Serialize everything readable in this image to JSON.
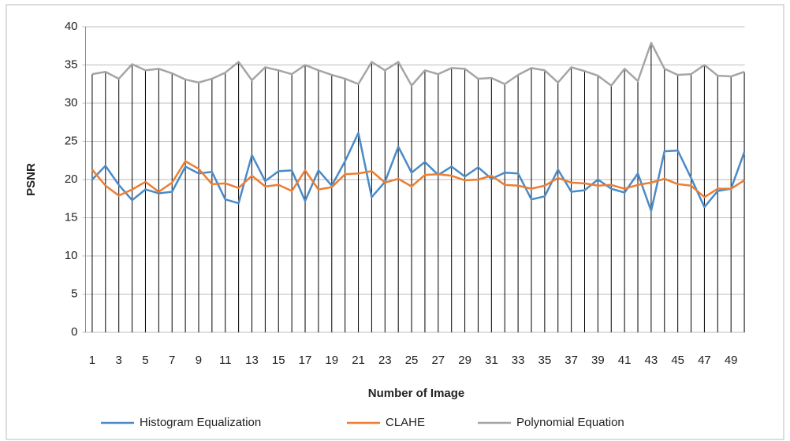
{
  "chart_data": {
    "type": "line",
    "y_label": "PSNR",
    "x_label": "Number of Image",
    "categories": [
      1,
      null,
      3,
      null,
      5,
      null,
      7,
      null,
      9,
      null,
      11,
      null,
      13,
      null,
      15,
      null,
      17,
      null,
      19,
      null,
      21,
      null,
      23,
      null,
      25,
      null,
      27,
      null,
      29,
      null,
      31,
      null,
      33,
      null,
      35,
      null,
      37,
      null,
      39,
      null,
      41,
      null,
      43,
      null,
      45,
      null,
      47,
      null,
      49,
      null
    ],
    "series": [
      {
        "name": "Histogram Equalization",
        "color": "#4a8bc8",
        "values": [
          20.0,
          21.8,
          19.3,
          17.3,
          18.7,
          18.2,
          18.4,
          21.7,
          20.8,
          21.0,
          17.4,
          16.9,
          23.2,
          19.8,
          21.1,
          21.2,
          17.2,
          21.2,
          19.2,
          22.4,
          26.1,
          17.7,
          19.7,
          24.3,
          20.9,
          22.3,
          20.6,
          21.7,
          20.4,
          21.6,
          20.1,
          20.9,
          20.8,
          17.4,
          17.8,
          21.3,
          18.4,
          18.6,
          20.0,
          18.8,
          18.3,
          20.8,
          15.9,
          23.7,
          23.8,
          20.2,
          16.4,
          18.5,
          18.8,
          23.6
        ]
      },
      {
        "name": "CLAHE",
        "color": "#ed7d31",
        "values": [
          21.3,
          19.2,
          17.9,
          18.7,
          19.7,
          18.4,
          19.6,
          22.4,
          21.4,
          19.4,
          19.5,
          18.9,
          20.5,
          19.1,
          19.3,
          18.5,
          21.2,
          18.7,
          19.0,
          20.7,
          20.8,
          21.1,
          19.6,
          20.1,
          19.1,
          20.6,
          20.7,
          20.5,
          19.9,
          20.0,
          20.5,
          19.3,
          19.2,
          18.8,
          19.2,
          20.2,
          19.6,
          19.5,
          19.2,
          19.3,
          18.8,
          19.3,
          19.6,
          20.1,
          19.4,
          19.2,
          17.7,
          18.8,
          18.8,
          19.9
        ]
      },
      {
        "name": "Polynomial Equation",
        "color": "#a5a5a5",
        "values": [
          33.8,
          34.1,
          33.2,
          35.1,
          34.3,
          34.5,
          33.9,
          33.1,
          32.7,
          33.2,
          34.0,
          35.4,
          33.0,
          34.7,
          34.3,
          33.8,
          35.0,
          34.3,
          33.7,
          33.2,
          32.5,
          35.4,
          34.3,
          35.4,
          32.3,
          34.3,
          33.8,
          34.6,
          34.5,
          33.2,
          33.3,
          32.5,
          33.7,
          34.6,
          34.3,
          32.7,
          34.7,
          34.2,
          33.6,
          32.3,
          34.5,
          32.9,
          37.9,
          34.5,
          33.7,
          33.8,
          35.0,
          33.6,
          33.5,
          34.1
        ]
      }
    ],
    "ylim": [
      0,
      40
    ],
    "yticks": [
      0,
      5,
      10,
      15,
      20,
      25,
      30,
      35,
      40
    ],
    "grid": true,
    "drop_lines": true,
    "legend": "bottom"
  }
}
